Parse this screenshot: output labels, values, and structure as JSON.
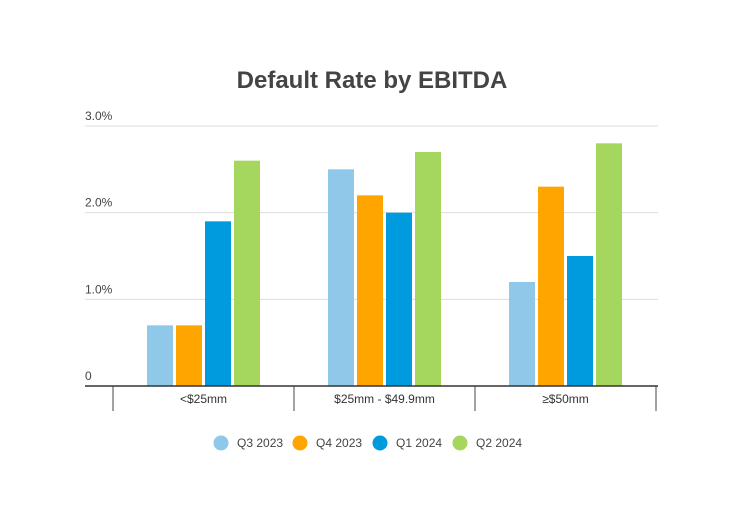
{
  "chart_data": {
    "type": "bar",
    "title": "Default Rate by EBITDA",
    "xlabel": "",
    "ylabel": "",
    "categories": [
      "<$25mm",
      "$25mm - $49.9mm",
      "≥$50mm"
    ],
    "series": [
      {
        "name": "Q3 2023",
        "color": "#8FC8E8",
        "values": [
          0.7,
          2.5,
          1.2
        ]
      },
      {
        "name": "Q4 2023",
        "color": "#FFA500",
        "values": [
          0.7,
          2.2,
          2.3
        ]
      },
      {
        "name": "Q1 2024",
        "color": "#009ADE",
        "values": [
          1.9,
          2.0,
          1.5
        ]
      },
      {
        "name": "Q2 2024",
        "color": "#A5D65E",
        "values": [
          2.6,
          2.7,
          2.8
        ]
      }
    ],
    "ylim": [
      0,
      3
    ],
    "yticks": [
      0,
      1,
      2,
      3
    ],
    "ytick_labels": [
      "0",
      "1.0%",
      "2.0%",
      "3.0%"
    ],
    "grid": true,
    "legend_position": "bottom"
  }
}
